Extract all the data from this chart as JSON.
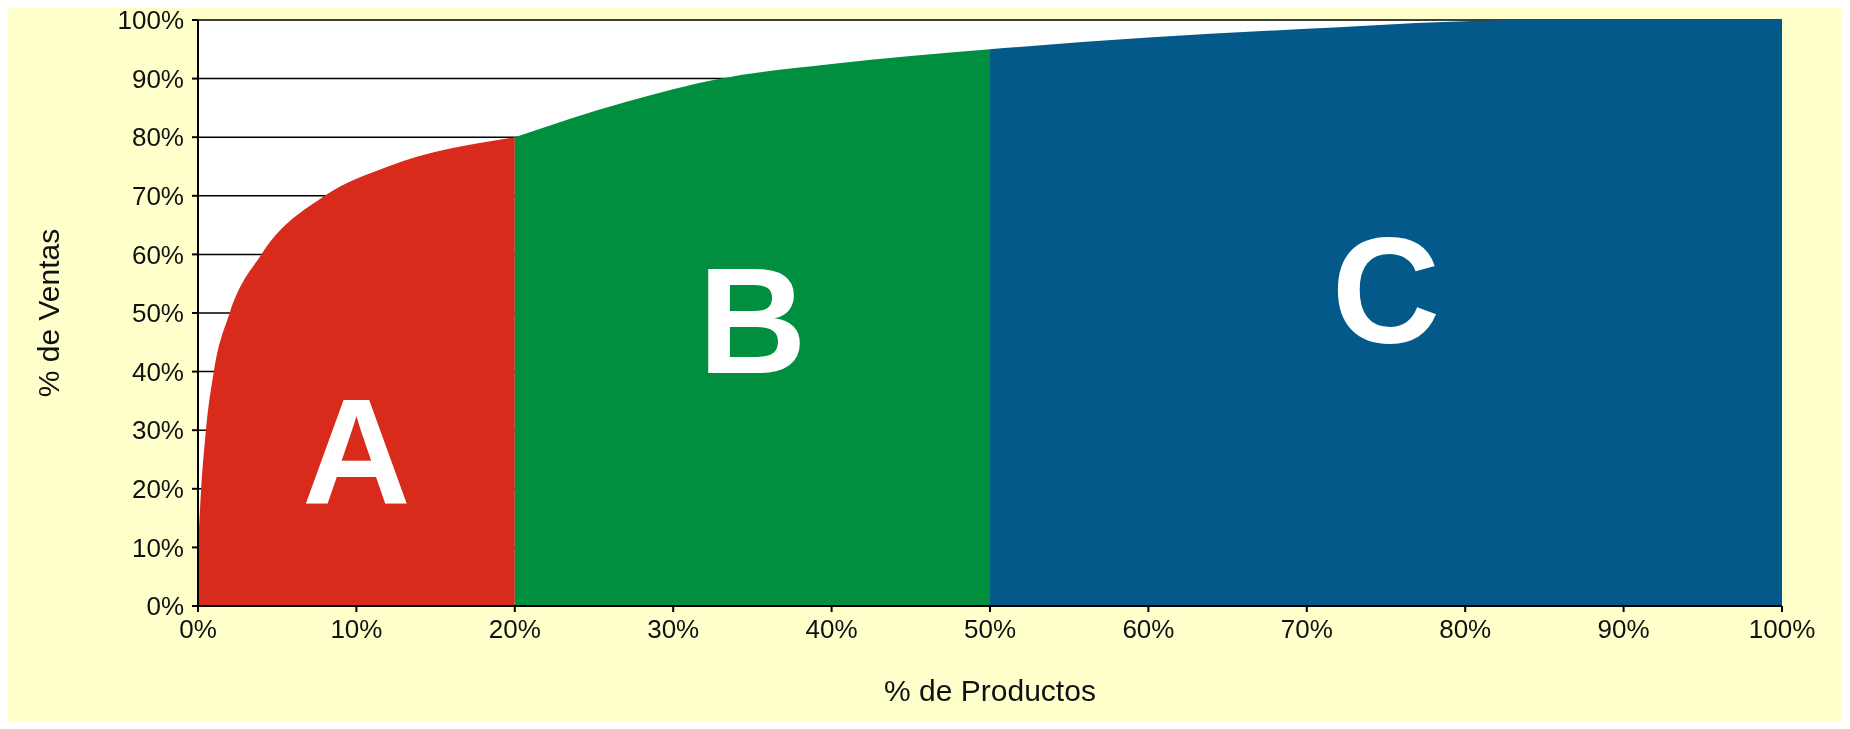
{
  "chart_data": {
    "type": "area",
    "xlabel": "% de Productos",
    "ylabel": "% de Ventas",
    "xlim": [
      0,
      100
    ],
    "xticks": [
      {
        "value": 0,
        "label": "0%"
      },
      {
        "value": 10,
        "label": "10%"
      },
      {
        "value": 20,
        "label": "20%"
      },
      {
        "value": 30,
        "label": "30%"
      },
      {
        "value": 40,
        "label": "40%"
      },
      {
        "value": 50,
        "label": "50%"
      },
      {
        "value": 60,
        "label": "60%"
      },
      {
        "value": 70,
        "label": "70%"
      },
      {
        "value": 80,
        "label": "80%"
      },
      {
        "value": 90,
        "label": "90%"
      },
      {
        "value": 100,
        "label": "100%"
      }
    ],
    "ylim": [
      0,
      100
    ],
    "yticks": [
      {
        "value": 0,
        "label": "0%"
      },
      {
        "value": 10,
        "label": "10%"
      },
      {
        "value": 20,
        "label": "20%"
      },
      {
        "value": 30,
        "label": "30%"
      },
      {
        "value": 40,
        "label": "40%"
      },
      {
        "value": 50,
        "label": "50%"
      },
      {
        "value": 60,
        "label": "60%"
      },
      {
        "value": 70,
        "label": "70%"
      },
      {
        "value": 80,
        "label": "80%"
      },
      {
        "value": 90,
        "label": "90%"
      },
      {
        "value": 100,
        "label": "100%"
      }
    ],
    "grid": "y",
    "legend": false,
    "series": [
      {
        "name": "A",
        "color": "#d92b1c",
        "x": [
          0,
          0.2,
          0.5,
          1,
          2,
          4,
          8,
          12,
          20
        ],
        "values": [
          10,
          20,
          30,
          40,
          50,
          60,
          70,
          75,
          80
        ]
      },
      {
        "name": "B",
        "color": "#008f3f",
        "x": [
          20,
          27,
          33,
          40,
          50
        ],
        "values": [
          80,
          86,
          90,
          92.5,
          95
        ]
      },
      {
        "name": "C",
        "color": "#02598a",
        "x": [
          50,
          60,
          70,
          84,
          100
        ],
        "values": [
          95,
          97,
          98.5,
          100,
          100
        ]
      }
    ]
  }
}
